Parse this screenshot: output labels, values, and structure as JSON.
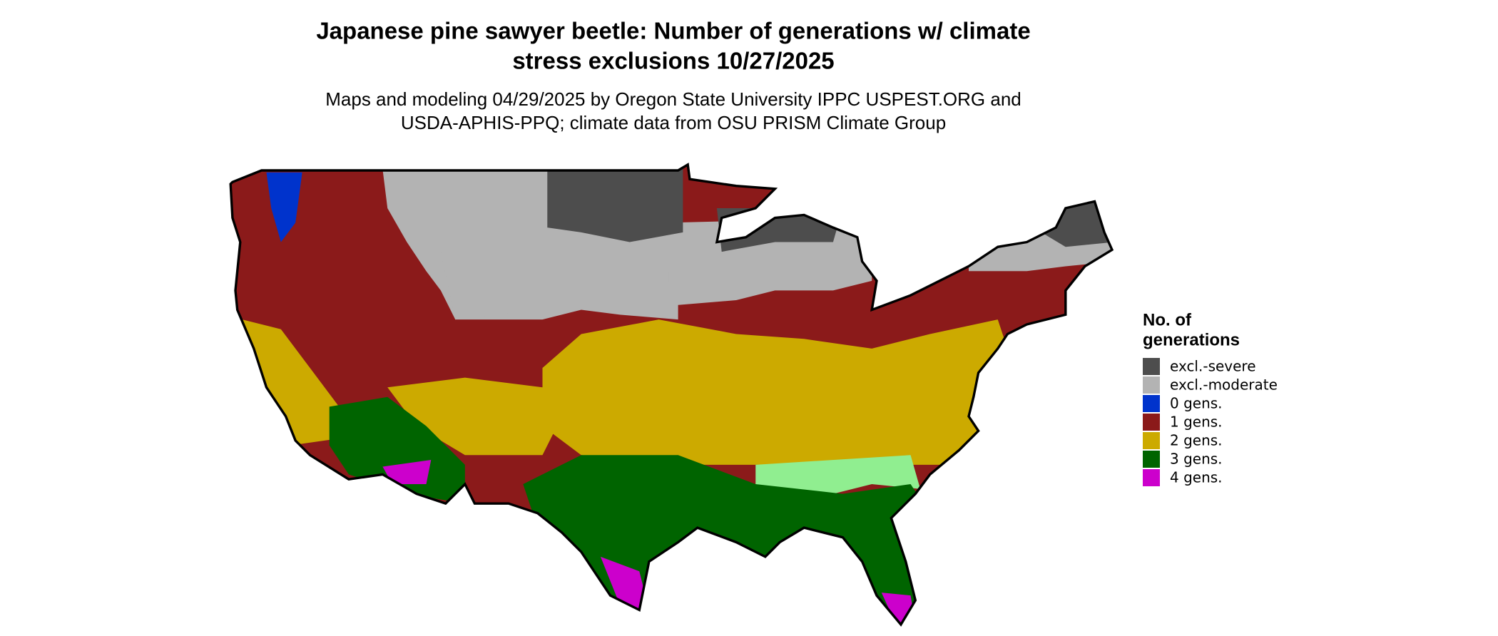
{
  "title": [
    "Japanese pine sawyer beetle: Number of generations w/ climate",
    "stress exclusions 10/27/2025"
  ],
  "subtitle": [
    "Maps and modeling 04/29/2025 by Oregon State University IPPC USPEST.ORG and",
    "USDA-APHIS-PPQ; climate data from OSU PRISM Climate Group"
  ],
  "legend": {
    "title": [
      "No. of",
      "generations"
    ],
    "items": [
      {
        "label": "excl.-severe",
        "color": "#4d4d4d"
      },
      {
        "label": "excl.-moderate",
        "color": "#b3b3b3"
      },
      {
        "label": "0 gens.",
        "color": "#0033cc"
      },
      {
        "label": "1 gens.",
        "color": "#8b1a1a"
      },
      {
        "label": "2 gens.",
        "color": "#ccaa00"
      },
      {
        "label": "3 gens.",
        "color": "#006400"
      },
      {
        "label": "4 gens.",
        "color": "#cc00cc"
      }
    ]
  }
}
